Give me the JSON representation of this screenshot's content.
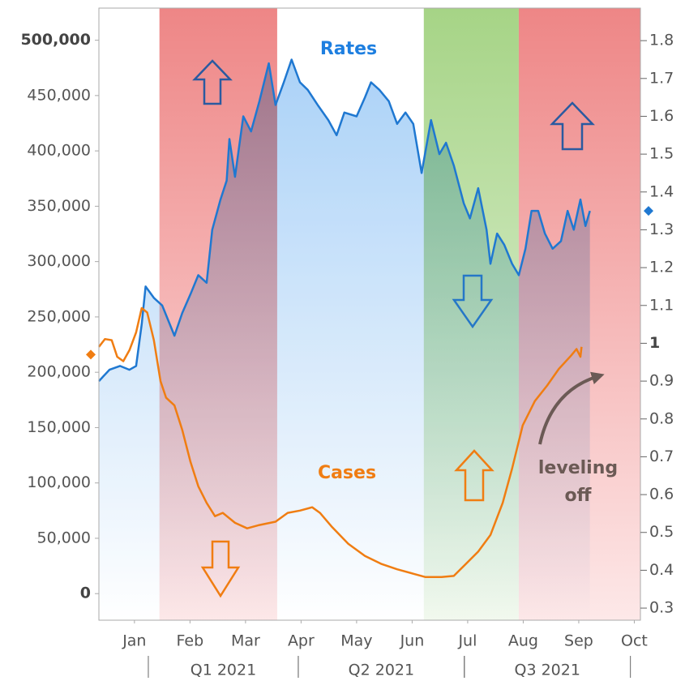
{
  "chart_data": {
    "type": "line",
    "xlim": [
      0.36,
      10.11
    ],
    "xticks": [
      {
        "value": 1,
        "label": "Jan"
      },
      {
        "value": 2,
        "label": "Feb"
      },
      {
        "value": 3,
        "label": "Mar"
      },
      {
        "value": 4,
        "label": "Apr"
      },
      {
        "value": 5,
        "label": "May"
      },
      {
        "value": 6,
        "label": "Jun"
      },
      {
        "value": 7,
        "label": "Jul"
      },
      {
        "value": 8,
        "label": "Aug"
      },
      {
        "value": 9,
        "label": "Sep"
      },
      {
        "value": 10,
        "label": "Oct"
      }
    ],
    "quarters": [
      {
        "label": "Q1 2021",
        "start": 1.25,
        "end": 3.95
      },
      {
        "label": "Q2 2021",
        "start": 3.95,
        "end": 6.94
      },
      {
        "label": "Q3 2021",
        "start": 6.94,
        "end": 9.93
      }
    ],
    "ylim": [
      -24000,
      529000
    ],
    "yticks": [
      {
        "value": 0,
        "label": "0",
        "bold": true
      },
      {
        "value": 50000,
        "label": "50,000"
      },
      {
        "value": 100000,
        "label": "100,000"
      },
      {
        "value": 150000,
        "label": "150,000"
      },
      {
        "value": 200000,
        "label": "200,000"
      },
      {
        "value": 250000,
        "label": "250,000"
      },
      {
        "value": 300000,
        "label": "300,000"
      },
      {
        "value": 350000,
        "label": "350,000"
      },
      {
        "value": 400000,
        "label": "400,000"
      },
      {
        "value": 450000,
        "label": "450,000"
      },
      {
        "value": 500000,
        "label": "500,000",
        "bold": true
      }
    ],
    "y2lim": [
      0.268,
      1.886
    ],
    "y2ticks": [
      0.3,
      0.4,
      0.5,
      0.6,
      0.7,
      0.8,
      0.9,
      {
        "value": 1,
        "label": "1",
        "bold": true
      },
      1.1,
      1.2,
      1.3,
      1.4,
      1.5,
      1.6,
      1.7,
      1.8
    ],
    "bands": [
      {
        "start": 1.45,
        "end": 3.57,
        "color": "red"
      },
      {
        "start": 6.21,
        "end": 7.92,
        "color": "green"
      },
      {
        "start": 7.92,
        "end": 10.11,
        "color": "red"
      }
    ],
    "series": [
      {
        "name": "Rates",
        "color": "#1f78d1",
        "axis": "y2",
        "area": true,
        "marker": 1.35,
        "x": [
          0.36,
          0.55,
          0.74,
          0.91,
          1.03,
          1.13,
          1.2,
          1.35,
          1.5,
          1.72,
          1.86,
          2.01,
          2.15,
          2.3,
          2.4,
          2.55,
          2.66,
          2.71,
          2.81,
          2.96,
          3.1,
          3.25,
          3.42,
          3.54,
          3.69,
          3.83,
          3.98,
          4.12,
          4.3,
          4.49,
          4.64,
          4.78,
          5.0,
          5.15,
          5.26,
          5.41,
          5.58,
          5.73,
          5.88,
          6.02,
          6.17,
          6.34,
          6.49,
          6.61,
          6.75,
          6.93,
          7.04,
          7.19,
          7.34,
          7.41,
          7.53,
          7.66,
          7.8,
          7.92,
          8.04,
          8.15,
          8.27,
          8.39,
          8.53,
          8.68,
          8.8,
          8.91,
          9.03,
          9.12,
          9.2
        ],
        "values": [
          0.9,
          0.93,
          0.94,
          0.93,
          0.94,
          1.05,
          1.15,
          1.12,
          1.1,
          1.02,
          1.08,
          1.13,
          1.18,
          1.16,
          1.3,
          1.38,
          1.43,
          1.54,
          1.44,
          1.6,
          1.56,
          1.64,
          1.74,
          1.63,
          1.69,
          1.75,
          1.69,
          1.67,
          1.63,
          1.59,
          1.55,
          1.61,
          1.6,
          1.65,
          1.69,
          1.67,
          1.64,
          1.58,
          1.61,
          1.58,
          1.45,
          1.59,
          1.5,
          1.53,
          1.47,
          1.37,
          1.33,
          1.41,
          1.3,
          1.21,
          1.29,
          1.26,
          1.21,
          1.18,
          1.25,
          1.35,
          1.35,
          1.29,
          1.25,
          1.27,
          1.35,
          1.3,
          1.38,
          1.31,
          1.35
        ]
      },
      {
        "name": "Cases",
        "color": "#f07d12",
        "axis": "y",
        "marker": 216000,
        "x": [
          0.36,
          0.47,
          0.59,
          0.69,
          0.8,
          0.91,
          1.03,
          1.13,
          1.23,
          1.35,
          1.47,
          1.57,
          1.72,
          1.86,
          2.01,
          2.15,
          2.3,
          2.45,
          2.59,
          2.81,
          3.03,
          3.25,
          3.54,
          3.76,
          3.98,
          4.2,
          4.34,
          4.56,
          4.85,
          5.15,
          5.44,
          5.73,
          6.02,
          6.24,
          6.53,
          6.75,
          6.97,
          7.19,
          7.41,
          7.63,
          7.8,
          7.99,
          8.21,
          8.43,
          8.64,
          8.86,
          8.96,
          9.03,
          9.05
        ],
        "values": [
          223000,
          230000,
          229000,
          214000,
          210000,
          220000,
          236000,
          258000,
          254000,
          229000,
          192000,
          177000,
          170000,
          148000,
          119000,
          97000,
          82000,
          70000,
          73000,
          64000,
          59000,
          62000,
          65000,
          73000,
          75000,
          78000,
          73000,
          60000,
          45000,
          34000,
          27000,
          22000,
          18000,
          15000,
          15000,
          16000,
          27000,
          38000,
          53000,
          82000,
          113000,
          152000,
          174000,
          188000,
          203000,
          215000,
          221000,
          214000,
          223000
        ]
      }
    ],
    "annotation_lines": [
      "leveling",
      "off"
    ]
  }
}
